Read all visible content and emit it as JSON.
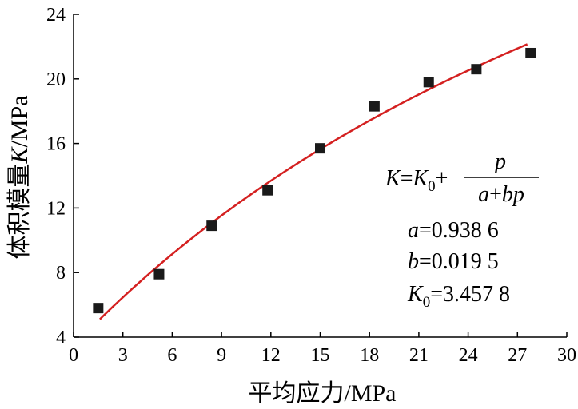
{
  "chart_data": {
    "type": "scatter",
    "xlabel": "平均应力/MPa",
    "ylabel": "体积模量K/MPa",
    "ylabel_parts": {
      "prefix": "体积模量",
      "var": "K",
      "suffix": "/MPa"
    },
    "xlim": [
      0,
      30
    ],
    "ylim": [
      4,
      24
    ],
    "x_ticks": [
      0,
      3,
      6,
      9,
      12,
      15,
      18,
      21,
      24,
      27,
      30
    ],
    "y_ticks": [
      4,
      8,
      12,
      16,
      20,
      24
    ],
    "grid": false,
    "series": [
      {
        "kind": "points",
        "marker": "square",
        "color": "#1a1a1a",
        "x": [
          1.5,
          5.2,
          8.4,
          11.8,
          15.0,
          18.3,
          21.6,
          24.5,
          27.8
        ],
        "y": [
          5.8,
          7.9,
          10.9,
          13.1,
          15.7,
          18.3,
          19.8,
          20.6,
          21.6
        ]
      },
      {
        "kind": "fit",
        "color": "#d42020",
        "x_range": [
          1.6,
          27.6
        ]
      }
    ],
    "fit": {
      "formula": {
        "lhs": "K",
        "eq": "=",
        "k0_base": "K",
        "k0_sub": "0",
        "plus": "+",
        "numerator": "p",
        "denominator": {
          "a": "a",
          "plus": "+",
          "bp": "bp"
        }
      },
      "params": [
        {
          "name": "a",
          "value_text": "=0.938 6",
          "value": 0.9386
        },
        {
          "name": "b",
          "value_text": "=0.019 5",
          "value": 0.0195
        },
        {
          "name": "K",
          "sub": "0",
          "value_text": "=3.457 8",
          "value": 3.4578
        }
      ]
    }
  }
}
